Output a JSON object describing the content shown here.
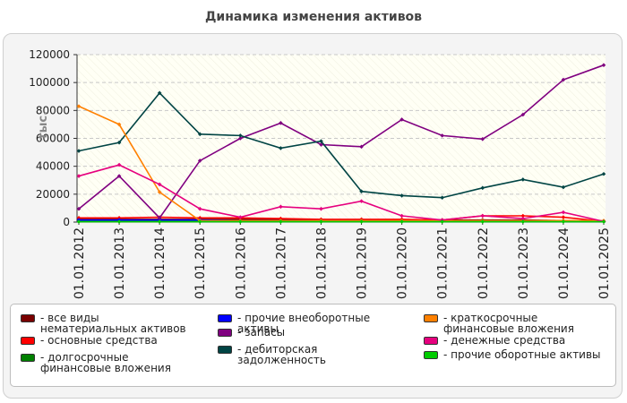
{
  "header": {
    "title": "Динамика изменения активов"
  },
  "chart_data": {
    "type": "line",
    "title": "Динамика изменения активов",
    "ylabel": "тыс.",
    "xlabel": "",
    "ylim": [
      0,
      120000
    ],
    "yticks": [
      0,
      20000,
      40000,
      60000,
      80000,
      100000,
      120000
    ],
    "grid": true,
    "legend_position": "bottom",
    "categories": [
      "01.01.2012",
      "01.01.2013",
      "01.01.2014",
      "01.01.2015",
      "01.01.2016",
      "01.01.2017",
      "01.01.2018",
      "01.01.2019",
      "01.01.2020",
      "01.01.2021",
      "01.01.2022",
      "01.01.2023",
      "01.01.2024",
      "01.01.2025"
    ],
    "series": [
      {
        "name": "- все виды нематериальных активов",
        "color": "#7a0000",
        "values": [
          2000,
          2000,
          2000,
          2000,
          2000,
          2000,
          1500,
          1500,
          1500,
          1500,
          1500,
          1500,
          1000,
          500
        ]
      },
      {
        "name": "- основные средства",
        "color": "#ff0000",
        "values": [
          3000,
          3000,
          3500,
          3000,
          3000,
          2500,
          2000,
          2000,
          2000,
          1500,
          4500,
          4500,
          3500,
          500
        ]
      },
      {
        "name": "- долгосрочные финансовые вложения",
        "color": "#008000",
        "values": [
          500,
          500,
          500,
          500,
          500,
          500,
          500,
          500,
          500,
          500,
          500,
          500,
          500,
          500
        ]
      },
      {
        "name": "- прочие внеоборотные активы",
        "color": "#0000ff",
        "values": [
          1500,
          1500,
          1500,
          1500,
          1000,
          1000,
          1000,
          1000,
          800,
          800,
          800,
          800,
          800,
          500
        ]
      },
      {
        "name": "- запасы",
        "color": "#800080",
        "values": [
          9500,
          33000,
          3000,
          44000,
          60000,
          71000,
          55500,
          54000,
          73500,
          62000,
          59500,
          77000,
          102000,
          112500
        ]
      },
      {
        "name": "- дебиторская задолженность",
        "color": "#004444",
        "values": [
          51000,
          57000,
          92500,
          63000,
          62000,
          53000,
          58000,
          22000,
          19000,
          17500,
          24500,
          30500,
          25000,
          34500
        ]
      },
      {
        "name": "- краткосрочные финансовые вложения",
        "color": "#ff8000",
        "values": [
          83000,
          70000,
          21500,
          1000,
          1000,
          1000,
          1000,
          1000,
          1000,
          1000,
          1000,
          1000,
          1000,
          1000
        ]
      },
      {
        "name": "- денежные средства",
        "color": "#e6007e",
        "values": [
          33000,
          41000,
          27000,
          9500,
          3500,
          11000,
          9500,
          15000,
          4500,
          1500,
          4500,
          2500,
          7000,
          500
        ]
      },
      {
        "name": "- прочие оборотные активы",
        "color": "#00cc00",
        "values": [
          300,
          300,
          300,
          300,
          300,
          300,
          300,
          300,
          300,
          300,
          300,
          300,
          300,
          300
        ]
      }
    ]
  }
}
